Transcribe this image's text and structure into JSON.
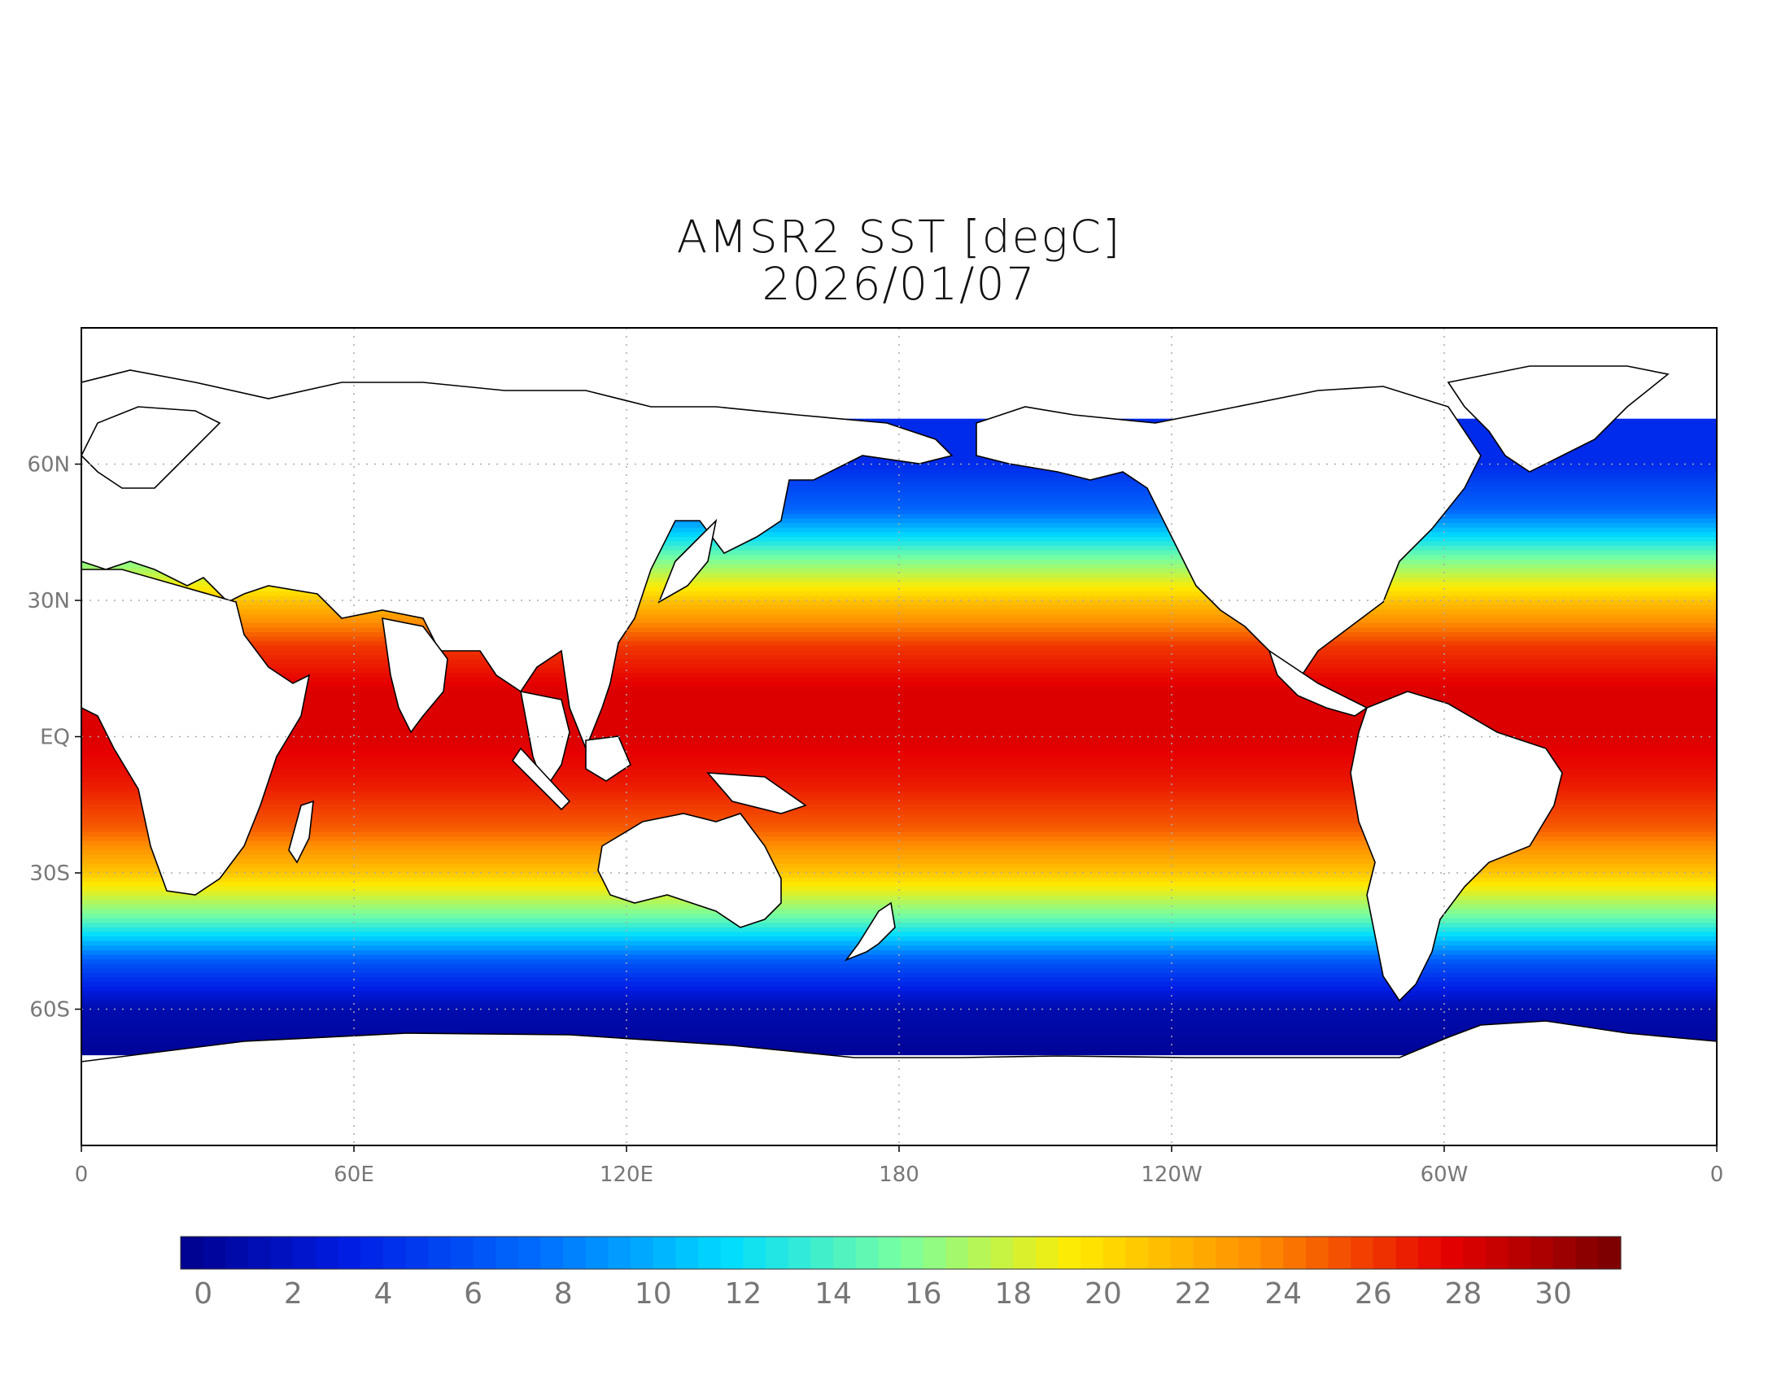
{
  "chart_data": {
    "type": "heatmap",
    "title": "AMSR2 SST [degC]",
    "subtitle": "2026/01/07",
    "projection": "equirectangular",
    "lon_range": [
      0,
      360
    ],
    "lat_range": [
      -90,
      90
    ],
    "x_ticks": [
      {
        "lon": 0,
        "label": "0"
      },
      {
        "lon": 60,
        "label": "60E"
      },
      {
        "lon": 120,
        "label": "120E"
      },
      {
        "lon": 180,
        "label": "180"
      },
      {
        "lon": 240,
        "label": "120W"
      },
      {
        "lon": 300,
        "label": "60W"
      },
      {
        "lon": 360,
        "label": "0"
      }
    ],
    "y_ticks": [
      {
        "lat": 60,
        "label": "60N"
      },
      {
        "lat": 30,
        "label": "30N"
      },
      {
        "lat": 0,
        "label": "EQ"
      },
      {
        "lat": -30,
        "label": "30S"
      },
      {
        "lat": -60,
        "label": "60S"
      }
    ],
    "grid": true,
    "colorbar": {
      "min": -0.5,
      "max": 31.5,
      "step": 0.5,
      "ticks": [
        0,
        2,
        4,
        6,
        8,
        10,
        12,
        14,
        16,
        18,
        20,
        22,
        24,
        26,
        28,
        30
      ],
      "orientation": "horizontal",
      "position": "bottom"
    },
    "colors": {
      "cold": "#00008b",
      "cool": "#0050ff",
      "cyan": "#00e6ff",
      "green": "#8cff8c",
      "yellow": "#ffe600",
      "orange": "#ff8c00",
      "red": "#e60000",
      "warm": "#780000",
      "land": "#ffffff",
      "coast": "#000000"
    },
    "sst_by_latitude": [
      {
        "lat": 70,
        "sst": 4
      },
      {
        "lat": 60,
        "sst": 4
      },
      {
        "lat": 50,
        "sst": 7
      },
      {
        "lat": 40,
        "sst": 15
      },
      {
        "lat": 30,
        "sst": 21
      },
      {
        "lat": 20,
        "sst": 26
      },
      {
        "lat": 10,
        "sst": 28
      },
      {
        "lat": 0,
        "sst": 28
      },
      {
        "lat": -10,
        "sst": 27
      },
      {
        "lat": -20,
        "sst": 25
      },
      {
        "lat": -30,
        "sst": 21
      },
      {
        "lat": -40,
        "sst": 15
      },
      {
        "lat": -50,
        "sst": 6
      },
      {
        "lat": -60,
        "sst": 1
      },
      {
        "lat": -70,
        "sst": 0
      }
    ]
  }
}
